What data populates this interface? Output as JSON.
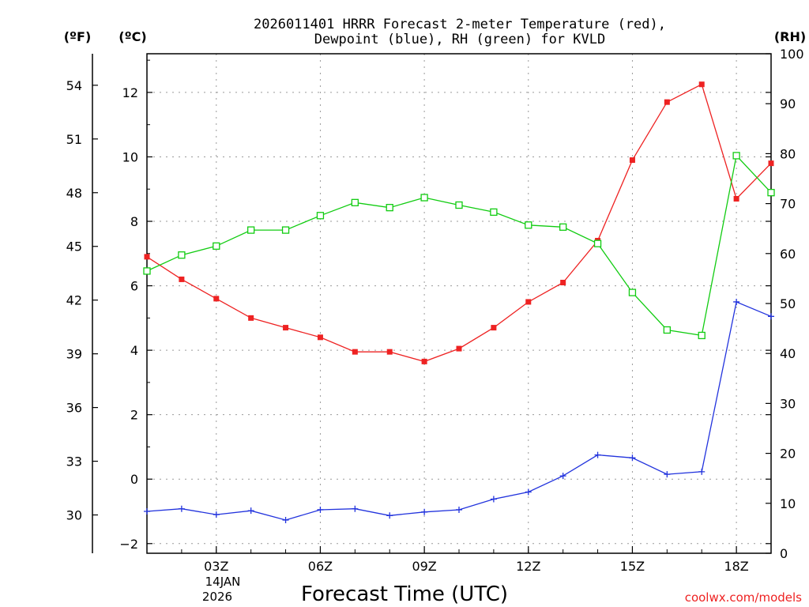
{
  "chart_data": {
    "type": "line",
    "title_line1": "2026011401 HRRR Forecast 2-meter Temperature (red),",
    "title_line2": "Dewpoint (blue), RH (green) for KVLD",
    "xlabel": "Forecast Time (UTC)",
    "unit_f": "(ºF)",
    "unit_c": "(ºC)",
    "unit_rh": "(RH)",
    "watermark": "coolwx.com/models",
    "date_label": [
      "14JAN",
      "2026"
    ],
    "x_hours": [
      1,
      2,
      3,
      4,
      5,
      6,
      7,
      8,
      9,
      10,
      11,
      12,
      13,
      14,
      15,
      16,
      17,
      18,
      19
    ],
    "xlim": [
      1,
      19
    ],
    "x_ticks": [
      {
        "hour": 3,
        "label": "03Z"
      },
      {
        "hour": 6,
        "label": "06Z"
      },
      {
        "hour": 9,
        "label": "09Z"
      },
      {
        "hour": 12,
        "label": "12Z"
      },
      {
        "hour": 15,
        "label": "15Z"
      },
      {
        "hour": 18,
        "label": "18Z"
      }
    ],
    "ylim_c": [
      -2.3,
      13.2
    ],
    "y_ticks_c": [
      -2,
      0,
      2,
      4,
      6,
      8,
      10,
      12
    ],
    "y_ticks_f": [
      30,
      33,
      36,
      39,
      42,
      45,
      48,
      51,
      54
    ],
    "ylim_rh": [
      0,
      100
    ],
    "y_ticks_rh": [
      0,
      10,
      20,
      30,
      40,
      50,
      60,
      70,
      80,
      90,
      100
    ],
    "series": [
      {
        "name": "Temperature",
        "axis": "c",
        "color": "#ee2222",
        "marker": "filled-square",
        "values": [
          6.9,
          6.2,
          5.6,
          5.0,
          4.7,
          4.4,
          3.95,
          3.95,
          3.65,
          4.05,
          4.7,
          5.5,
          6.1,
          7.4,
          9.9,
          11.7,
          12.25,
          8.7,
          9.8
        ]
      },
      {
        "name": "Dewpoint",
        "axis": "c",
        "color": "#2233dd",
        "marker": "plus",
        "values": [
          -1.0,
          -0.92,
          -1.1,
          -0.98,
          -1.27,
          -0.95,
          -0.92,
          -1.13,
          -1.02,
          -0.95,
          -0.62,
          -0.4,
          0.1,
          0.75,
          0.66,
          0.15,
          0.23,
          5.5,
          5.05
        ]
      },
      {
        "name": "RH",
        "axis": "rh",
        "color": "#11cc11",
        "marker": "open-square",
        "values": [
          56.5,
          59.7,
          61.5,
          64.7,
          64.7,
          67.6,
          70.2,
          69.2,
          71.2,
          69.7,
          68.3,
          65.7,
          65.3,
          62.0,
          52.2,
          44.7,
          43.6,
          79.6,
          72.2
        ]
      }
    ]
  }
}
